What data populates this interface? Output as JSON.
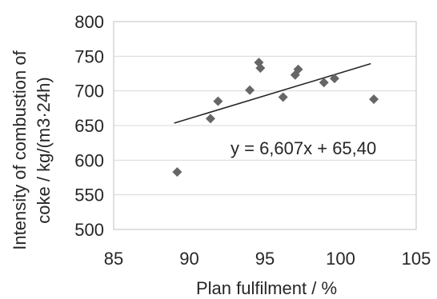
{
  "chart_data": {
    "type": "scatter",
    "title": "",
    "xlabel": "Plan fulfilment / %",
    "ylabel_lines": [
      "Intensity of combustion of",
      "coke /  kg/(m3·24h)"
    ],
    "xlim": [
      85,
      105
    ],
    "ylim": [
      500,
      800
    ],
    "x_ticks": [
      85,
      90,
      95,
      100,
      105
    ],
    "y_ticks": [
      500,
      550,
      600,
      650,
      700,
      750,
      800
    ],
    "grid": "horizontal",
    "legend": "none",
    "marker": "diamond",
    "marker_color": "#666666",
    "points": [
      {
        "x": 89.2,
        "y": 583
      },
      {
        "x": 91.4,
        "y": 660
      },
      {
        "x": 91.9,
        "y": 685
      },
      {
        "x": 94.0,
        "y": 701
      },
      {
        "x": 94.6,
        "y": 741
      },
      {
        "x": 94.7,
        "y": 733
      },
      {
        "x": 96.2,
        "y": 691
      },
      {
        "x": 97.0,
        "y": 723
      },
      {
        "x": 97.2,
        "y": 731
      },
      {
        "x": 98.9,
        "y": 712
      },
      {
        "x": 99.6,
        "y": 718
      },
      {
        "x": 102.2,
        "y": 688
      }
    ],
    "trendline": {
      "x_range": [
        89.0,
        102.0
      ],
      "slope": 6.607,
      "intercept": 65.4,
      "equation_label": "y = 6,607x + 65,40"
    }
  }
}
